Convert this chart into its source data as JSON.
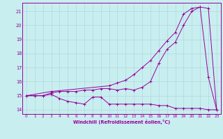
{
  "xlabel": "Windchill (Refroidissement éolien,°C)",
  "background_color": "#c8eef0",
  "grid_color": "#b0d8dc",
  "line_color": "#990099",
  "xlim": [
    -0.5,
    23.5
  ],
  "ylim": [
    13.7,
    21.6
  ],
  "yticks": [
    14,
    15,
    16,
    17,
    18,
    19,
    20,
    21
  ],
  "xticks": [
    0,
    1,
    2,
    3,
    4,
    5,
    6,
    7,
    8,
    9,
    10,
    11,
    12,
    13,
    14,
    15,
    16,
    17,
    18,
    19,
    20,
    21,
    22,
    23
  ],
  "line1_x": [
    0,
    1,
    2,
    3,
    4,
    5,
    6,
    7,
    8,
    9,
    10,
    11,
    12,
    13,
    14,
    15,
    16,
    17,
    18,
    19,
    20,
    21,
    22,
    23
  ],
  "line1_y": [
    15.0,
    15.0,
    15.0,
    15.1,
    14.8,
    14.6,
    14.5,
    14.4,
    14.9,
    14.9,
    14.4,
    14.4,
    14.4,
    14.4,
    14.4,
    14.4,
    14.3,
    14.3,
    14.1,
    14.1,
    14.1,
    14.1,
    14.0,
    14.0
  ],
  "line2_x": [
    0,
    1,
    2,
    3,
    4,
    5,
    6,
    7,
    8,
    9,
    10,
    11,
    12,
    13,
    14,
    15,
    16,
    17,
    18,
    19,
    20,
    21,
    22,
    23
  ],
  "line2_y": [
    15.0,
    15.0,
    15.0,
    15.2,
    15.3,
    15.3,
    15.3,
    15.4,
    15.4,
    15.5,
    15.5,
    15.4,
    15.5,
    15.4,
    15.6,
    16.0,
    17.3,
    18.3,
    18.8,
    20.0,
    21.0,
    21.3,
    16.3,
    14.0
  ],
  "line3_x": [
    0,
    3,
    10,
    11,
    12,
    13,
    14,
    15,
    16,
    17,
    18,
    19,
    20,
    21,
    22,
    23
  ],
  "line3_y": [
    15.0,
    15.3,
    15.7,
    15.9,
    16.1,
    16.5,
    17.0,
    17.5,
    18.2,
    18.9,
    19.5,
    20.8,
    21.2,
    21.3,
    21.2,
    14.0
  ]
}
